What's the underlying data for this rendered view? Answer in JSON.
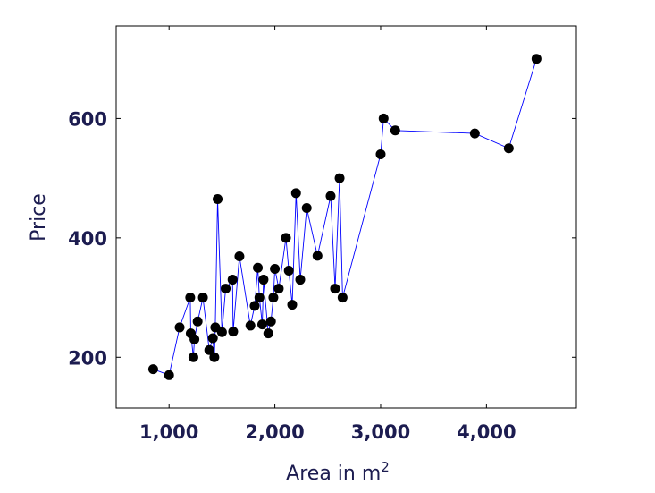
{
  "chart_data": {
    "type": "line",
    "title": "",
    "xlabel": "Area in m",
    "xlabel_superscript": "2",
    "ylabel": "Price",
    "xlim": [
      500,
      4850
    ],
    "ylim": [
      115,
      755
    ],
    "xticks": [
      1000,
      2000,
      3000,
      4000
    ],
    "xtick_labels": [
      "1,000",
      "2,000",
      "3,000",
      "4,000"
    ],
    "yticks": [
      200,
      400,
      600
    ],
    "ytick_labels": [
      "200",
      "400",
      "600"
    ],
    "grid": false,
    "line_color": "#0000ff",
    "marker_color": "#000000",
    "series": [
      {
        "x": [
          850,
          1000,
          1100,
          1200,
          1205,
          1230,
          1240,
          1270,
          1320,
          1380,
          1414,
          1428,
          1437,
          1459,
          1500,
          1535,
          1600,
          1606,
          1665,
          1769,
          1809,
          1839,
          1854,
          1881,
          1893,
          1938,
          1963,
          1986,
          2000,
          2037,
          2105,
          2132,
          2164,
          2200,
          2240,
          2301,
          2403,
          2527,
          2569,
          2612,
          2640,
          3000,
          3028,
          3138,
          3890,
          4211,
          4473
        ],
        "y": [
          180,
          170,
          250,
          300,
          240,
          200,
          230,
          260,
          300,
          212,
          232,
          200,
          250,
          465,
          242,
          315,
          330,
          243,
          369,
          253,
          286,
          350,
          300,
          255,
          330,
          240,
          260,
          300,
          348,
          315,
          400,
          345,
          288,
          475,
          330,
          450,
          370,
          470,
          315,
          500,
          300,
          540,
          600,
          580,
          575,
          550,
          700
        ]
      }
    ]
  }
}
